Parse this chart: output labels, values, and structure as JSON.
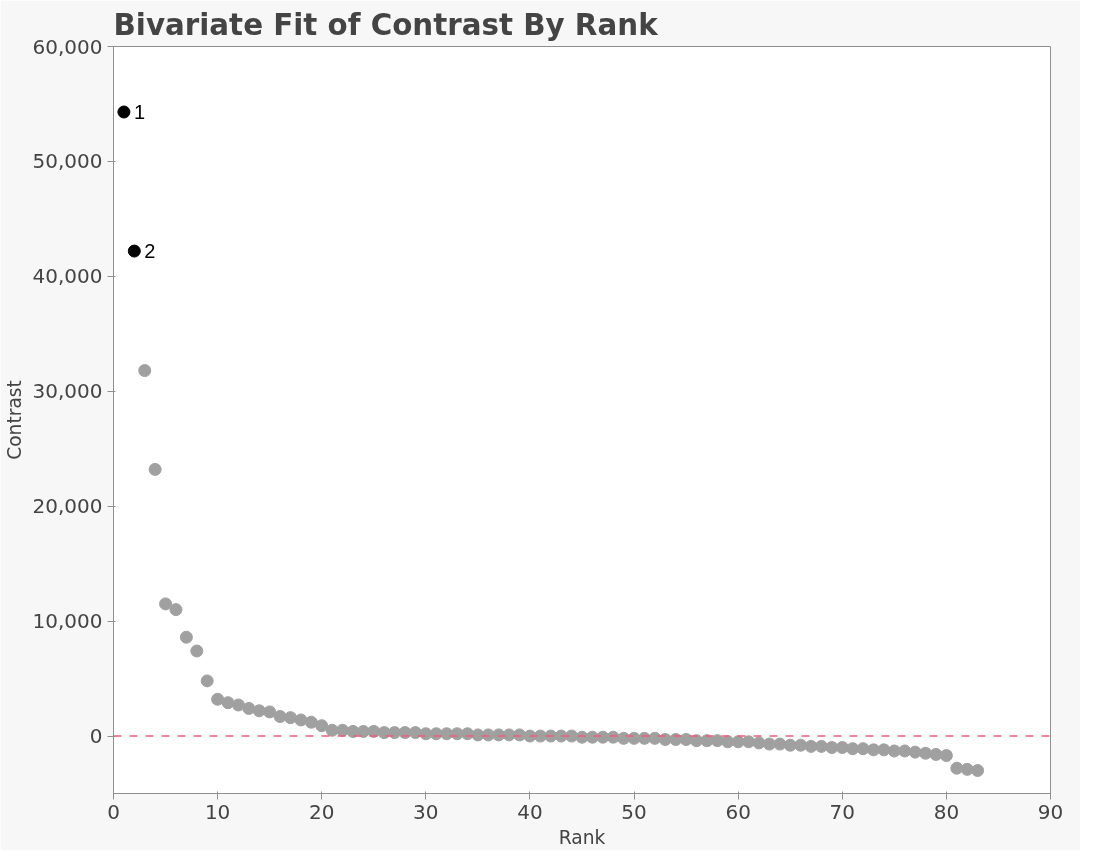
{
  "chart_data": {
    "type": "scatter",
    "title": "Bivariate Fit of Contrast By Rank",
    "xlabel": "Rank",
    "ylabel": "Contrast",
    "xlim": [
      0,
      90
    ],
    "xticks": [
      0,
      10,
      20,
      30,
      40,
      50,
      60,
      70,
      80,
      90
    ],
    "ylim": [
      -5000,
      60000
    ],
    "yticks": [
      {
        "value": 0,
        "label": "0"
      },
      {
        "value": 10000,
        "label": "10,000"
      },
      {
        "value": 20000,
        "label": "20,000"
      },
      {
        "value": 30000,
        "label": "30,000"
      },
      {
        "value": 40000,
        "label": "40,000"
      },
      {
        "value": 50000,
        "label": "50,000"
      },
      {
        "value": 60000,
        "label": "60,000"
      }
    ],
    "grid": false,
    "marker": "circle",
    "ref_lines": [
      {
        "axis": "y",
        "value": 0,
        "color": "#e8607a",
        "line_style": "dashed"
      }
    ],
    "series": [
      {
        "color": "#000000",
        "x": [
          1,
          2
        ],
        "values": [
          54300,
          42200
        ]
      },
      {
        "color": "#a0a0a0",
        "x": [
          3,
          4,
          5,
          6,
          7,
          8,
          9,
          10,
          11,
          12,
          13,
          14,
          15,
          16,
          17,
          18,
          19,
          20,
          21,
          22,
          23,
          24,
          25,
          26,
          27,
          28,
          29,
          30,
          31,
          32,
          33,
          34,
          35,
          36,
          37,
          38,
          39,
          40,
          41,
          42,
          43,
          44,
          45,
          46,
          47,
          48,
          49,
          50,
          51,
          52,
          53,
          54,
          55,
          56,
          57,
          58,
          59,
          60,
          61,
          62,
          63,
          64,
          65,
          66,
          67,
          68,
          69,
          70,
          71,
          72,
          73,
          74,
          75,
          76,
          77,
          78,
          79,
          80,
          81,
          82,
          83
        ],
        "values": [
          31800,
          23200,
          11500,
          11000,
          8600,
          7400,
          4800,
          3200,
          2900,
          2700,
          2400,
          2200,
          2100,
          1700,
          1600,
          1400,
          1200,
          900,
          500,
          500,
          400,
          400,
          400,
          300,
          300,
          300,
          300,
          200,
          200,
          200,
          200,
          200,
          100,
          100,
          100,
          100,
          100,
          0,
          0,
          0,
          0,
          0,
          -100,
          -100,
          -100,
          -100,
          -200,
          -200,
          -200,
          -200,
          -300,
          -300,
          -300,
          -400,
          -400,
          -400,
          -500,
          -500,
          -500,
          -600,
          -700,
          -700,
          -800,
          -800,
          -900,
          -900,
          -1000,
          -1000,
          -1100,
          -1100,
          -1200,
          -1200,
          -1300,
          -1300,
          -1400,
          -1500,
          -1600,
          -1700,
          -2800,
          -2900,
          -3000
        ]
      }
    ],
    "annotations": [
      {
        "text": "1",
        "x": 1,
        "y": 54300
      },
      {
        "text": "2",
        "x": 2,
        "y": 42200
      }
    ]
  }
}
